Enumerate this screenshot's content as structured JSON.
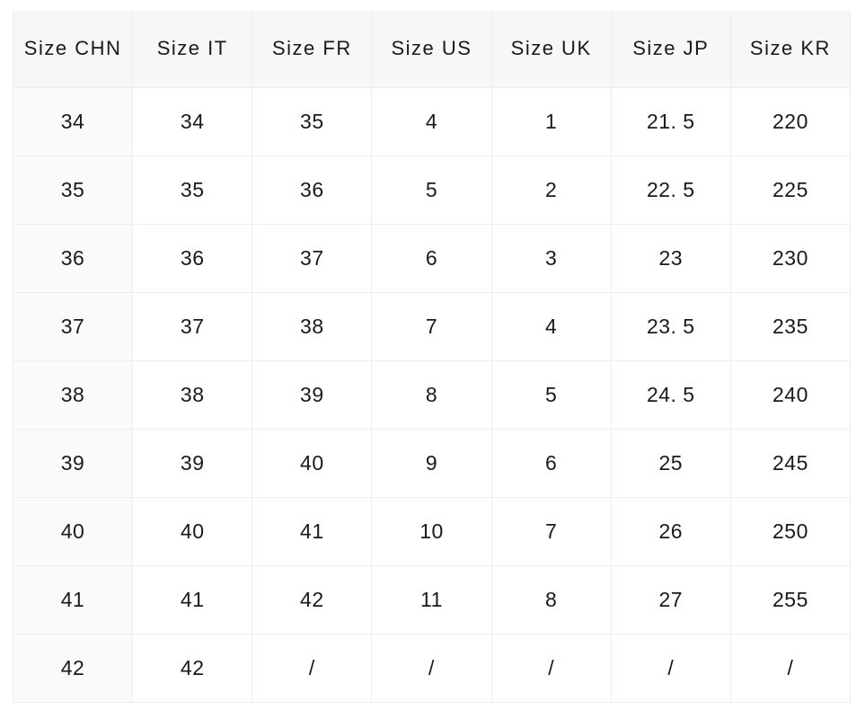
{
  "chart_data": {
    "type": "table",
    "headers": [
      "Size CHN",
      "Size IT",
      "Size FR",
      "Size US",
      "Size UK",
      "Size JP",
      "Size KR"
    ],
    "rows": [
      [
        "34",
        "34",
        "35",
        "4",
        "1",
        "21. 5",
        "220"
      ],
      [
        "35",
        "35",
        "36",
        "5",
        "2",
        "22. 5",
        "225"
      ],
      [
        "36",
        "36",
        "37",
        "6",
        "3",
        "23",
        "230"
      ],
      [
        "37",
        "37",
        "38",
        "7",
        "4",
        "23. 5",
        "235"
      ],
      [
        "38",
        "38",
        "39",
        "8",
        "5",
        "24. 5",
        "240"
      ],
      [
        "39",
        "39",
        "40",
        "9",
        "6",
        "25",
        "245"
      ],
      [
        "40",
        "40",
        "41",
        "10",
        "7",
        "26",
        "250"
      ],
      [
        "41",
        "41",
        "42",
        "11",
        "8",
        "27",
        "255"
      ],
      [
        "42",
        "42",
        "/",
        "/",
        "/",
        "/",
        "/"
      ]
    ]
  },
  "colors": {
    "page_bg": "#ffffff",
    "header_bg": "#f7f7f7",
    "first_column_bg": "#fafafa",
    "grid_line": "#ededed",
    "text": "#1a1a1a"
  }
}
